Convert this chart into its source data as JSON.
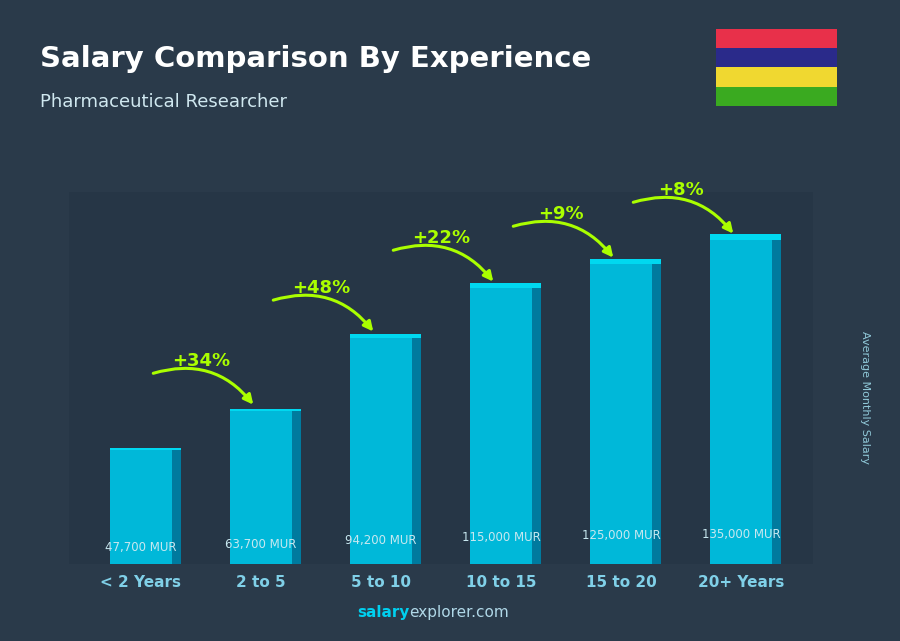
{
  "title": "Salary Comparison By Experience",
  "subtitle": "Pharmaceutical Researcher",
  "categories": [
    "< 2 Years",
    "2 to 5",
    "5 to 10",
    "10 to 15",
    "15 to 20",
    "20+ Years"
  ],
  "values": [
    47700,
    63700,
    94200,
    115000,
    125000,
    135000
  ],
  "value_labels": [
    "47,700 MUR",
    "63,700 MUR",
    "94,200 MUR",
    "115,000 MUR",
    "125,000 MUR",
    "135,000 MUR"
  ],
  "pct_labels": [
    "+34%",
    "+48%",
    "+22%",
    "+9%",
    "+8%"
  ],
  "bar_color_main": "#00b8d9",
  "bar_color_side": "#007a9e",
  "bar_color_top": "#00d8f0",
  "bg_dark": "#2a3a4a",
  "bg_overlay": "#1e2d3d",
  "title_color": "#ffffff",
  "subtitle_color": "#d0e8f0",
  "value_label_color": "#c8e8f0",
  "pct_color": "#aaff00",
  "tick_color": "#80d0e8",
  "footer_salary_color": "#00cfef",
  "footer_explorer_color": "#b0d8e8",
  "ylabel_text": "Average Monthly Salary",
  "flag_colors": [
    "#e8304a",
    "#2a2a8a",
    "#f0d830",
    "#3aaa20"
  ],
  "ylim_max": 155000
}
